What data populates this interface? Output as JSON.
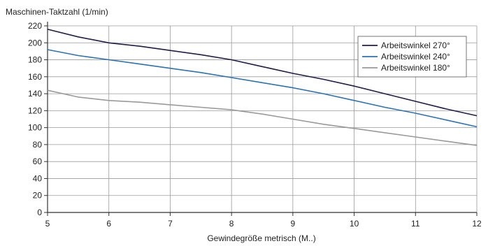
{
  "chart_data": {
    "type": "line",
    "ylabel": "Maschinen-Taktzahl (1/min)",
    "xlabel": "Gewindegröße metrisch (M..)",
    "xlim": [
      5,
      12
    ],
    "ylim": [
      0,
      220
    ],
    "x_ticks": [
      "5",
      "6",
      "7",
      "8",
      "9",
      "10",
      "11",
      "12"
    ],
    "y_ticks": [
      "0",
      "20",
      "40",
      "60",
      "80",
      "100",
      "120",
      "140",
      "160",
      "180",
      "200",
      "220"
    ],
    "grid": true,
    "legend_position": "top-right",
    "series": [
      {
        "name": "Arbeitswinkel 270°",
        "color": "#1f1d4a",
        "x": [
          5,
          5.5,
          6,
          6.5,
          7,
          7.5,
          8,
          8.5,
          9,
          9.5,
          10,
          10.5,
          11,
          11.5,
          12
        ],
        "y": [
          216,
          207,
          200,
          196,
          191,
          186,
          180,
          172,
          164,
          157,
          149,
          140,
          131,
          122,
          114
        ]
      },
      {
        "name": "Arbeitswinkel 240°",
        "color": "#2a72b8",
        "x": [
          5,
          5.5,
          6,
          6.5,
          7,
          7.5,
          8,
          8.5,
          9,
          9.5,
          10,
          10.5,
          11,
          11.5,
          12
        ],
        "y": [
          192,
          185,
          180,
          175,
          170,
          165,
          159,
          153,
          147,
          140,
          132,
          124,
          117,
          109,
          101
        ]
      },
      {
        "name": "Arbeitswinkel 180°",
        "color": "#9a9a9a",
        "x": [
          5,
          5.5,
          6,
          6.5,
          7,
          7.5,
          8,
          8.5,
          9,
          9.5,
          10,
          10.5,
          11,
          11.5,
          12
        ],
        "y": [
          144,
          136,
          132,
          130,
          127,
          124,
          121,
          116,
          110,
          104,
          99,
          94,
          89,
          84,
          79
        ]
      }
    ]
  }
}
